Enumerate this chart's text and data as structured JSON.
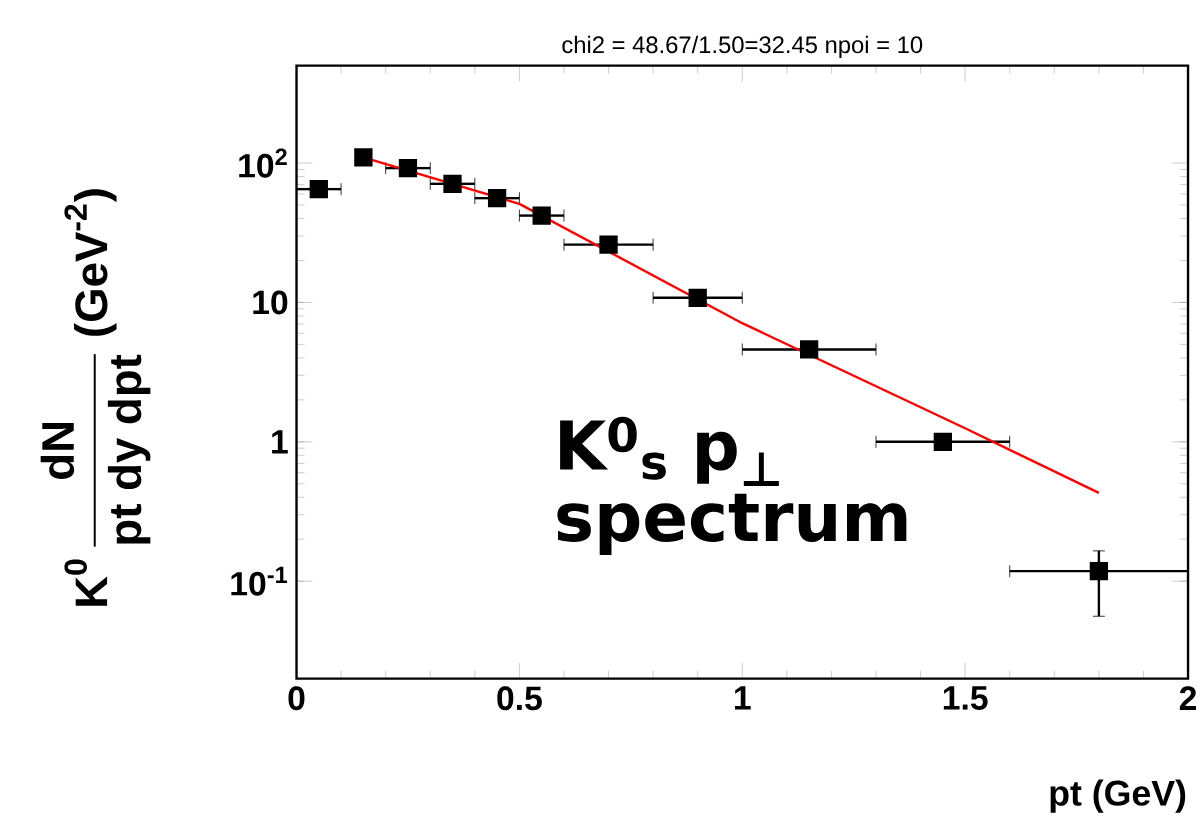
{
  "chart_data": {
    "type": "scatter",
    "title": "chi2 = 48.67/1.50=32.45    npoi = 10",
    "xlabel": "pt (GeV)",
    "ylabel": "\\text{K}^{\\text{0}}\\,\\frac{\\text{dN}}{\\text{pt dy dpt}}\\;\\text{(GeV}^{\\text{-2}}\\text{)}",
    "annotations": [
      "K$^{0}$$_{s}$ p$_{⊥}$ spectrum"
    ],
    "xlim": [
      0,
      2
    ],
    "xticks": [
      0,
      0.5,
      1,
      1.5,
      2
    ],
    "ylim": [
      0.02,
      500
    ],
    "log": "y",
    "yticks": [
      {
        "value": 0.1,
        "label": "10$^{-1}$"
      },
      1,
      10,
      {
        "value": 100,
        "label": "10$^{2}$"
      }
    ],
    "series": [
      {
        "color": "#000000",
        "marker": "square",
        "x": [
          0.05,
          0.15,
          0.25,
          0.35,
          0.45,
          0.55,
          0.7,
          0.9,
          1.15,
          1.45,
          1.8
        ],
        "values": [
          65,
          110,
          92,
          71,
          56,
          42,
          26,
          10.8,
          4.6,
          1.0,
          0.118
        ],
        "xerrors": [
          0.05,
          null,
          0.05,
          0.05,
          0.05,
          0.05,
          0.1,
          0.1,
          0.15,
          0.15,
          0.2
        ],
        "errors": [
          null,
          null,
          null,
          null,
          null,
          null,
          null,
          null,
          null,
          null,
          [
            0.056,
            0.165
          ]
        ]
      },
      {
        "type": "line",
        "color": "#ff0000",
        "marker": "none",
        "x": [
          0.15,
          0.5,
          1.0,
          1.5,
          1.8
        ],
        "values": [
          110,
          51,
          7.1,
          1.25,
          0.43
        ]
      }
    ]
  }
}
